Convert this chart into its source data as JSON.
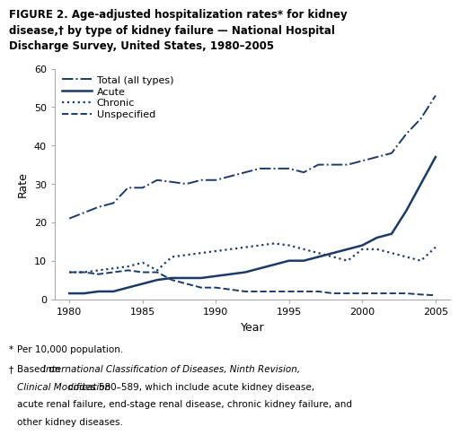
{
  "title": "FIGURE 2. Age-adjusted hospitalization rates* for kidney\ndisease,† by type of kidney failure — National Hospital\nDischarge Survey, United States, 1980–2005",
  "xlabel": "Year",
  "ylabel": "Rate",
  "xlim": [
    1979,
    2006
  ],
  "ylim": [
    0,
    60
  ],
  "yticks": [
    0,
    10,
    20,
    30,
    40,
    50,
    60
  ],
  "xticks": [
    1980,
    1985,
    1990,
    1995,
    2000,
    2005
  ],
  "line_color": "#1a3a6b",
  "years": [
    1980,
    1981,
    1982,
    1983,
    1984,
    1985,
    1986,
    1987,
    1988,
    1989,
    1990,
    1991,
    1992,
    1993,
    1994,
    1995,
    1996,
    1997,
    1998,
    1999,
    2000,
    2001,
    2002,
    2003,
    2004,
    2005
  ],
  "total": [
    21,
    22.5,
    24,
    25,
    29,
    29,
    31,
    30.5,
    30,
    31,
    31,
    32,
    33,
    34,
    34,
    34,
    33,
    35,
    35,
    35,
    36,
    37,
    38,
    43,
    47,
    53
  ],
  "acute": [
    1.5,
    1.5,
    2,
    2,
    3,
    4,
    5,
    5.5,
    5.5,
    5.5,
    6,
    6.5,
    7,
    8,
    9,
    10,
    10,
    11,
    12,
    13,
    14,
    16,
    17,
    23,
    30,
    37
  ],
  "chronic": [
    7,
    7,
    7.5,
    8,
    8.5,
    9.5,
    7.5,
    11,
    11.5,
    12,
    12.5,
    13,
    13.5,
    14,
    14.5,
    14,
    13,
    12,
    11,
    10,
    13,
    13,
    12,
    11,
    10,
    13.5
  ],
  "unspecified": [
    7,
    7,
    6.5,
    7,
    7.5,
    7,
    7,
    5,
    4,
    3,
    3,
    2.5,
    2,
    2,
    2,
    2,
    2,
    2,
    1.5,
    1.5,
    1.5,
    1.5,
    1.5,
    1.5,
    1.2,
    1.0
  ],
  "legend_labels": [
    "Total (all types)",
    "Acute",
    "Chronic",
    "Unspecified"
  ],
  "legend_styles": [
    "-.",
    "-",
    ":",
    "--"
  ],
  "fn1_marker": "*",
  "fn1_text": "Per 10,000 population.",
  "fn2_marker": "†",
  "fn2_prefix": "Based on ",
  "fn2_italic": "International Classification of Diseases, Ninth Revision,\nClinical Modification",
  "fn2_suffix": "codes 580–589, which include acute kidney disease,\nacute renal failure, end-stage renal disease, chronic kidney failure, and\nother kidney diseases."
}
